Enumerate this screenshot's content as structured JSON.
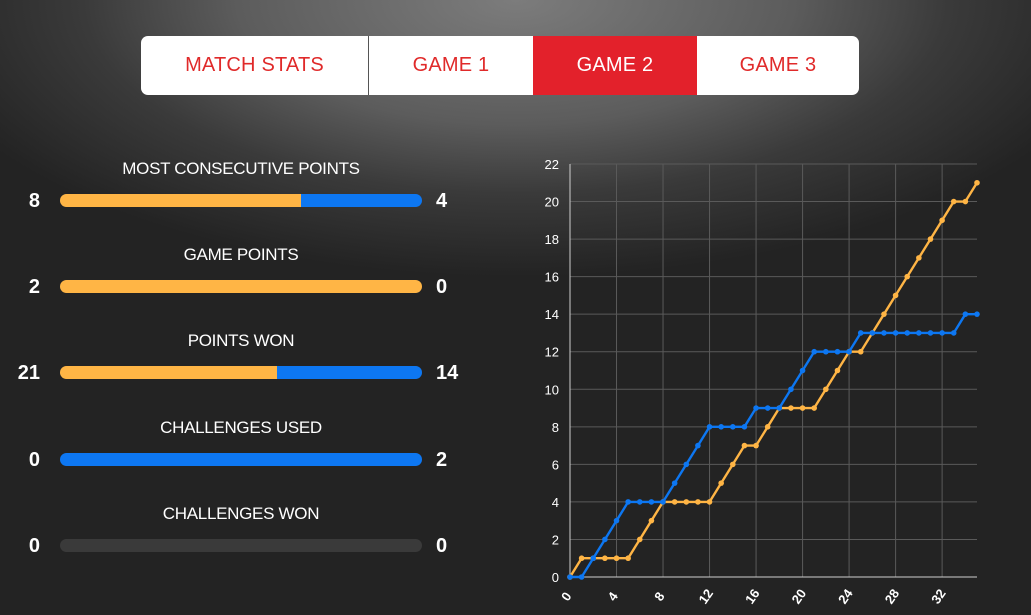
{
  "tabs": [
    {
      "label": "MATCH STATS",
      "active": false
    },
    {
      "label": "GAME 1",
      "active": false
    },
    {
      "label": "GAME 2",
      "active": true
    },
    {
      "label": "GAME 3",
      "active": false
    }
  ],
  "colors": {
    "player_a": "#ffb545",
    "player_b": "#0d77f2",
    "empty_bar": "#3a3a3a",
    "active_tab": "#e3212b",
    "tab_text": "#e02a2a"
  },
  "stats": [
    {
      "label": "MOST CONSECUTIVE POINTS",
      "left": "8",
      "right": "4",
      "left_value": 8,
      "right_value": 4
    },
    {
      "label": "GAME POINTS",
      "left": "2",
      "right": "0",
      "left_value": 2,
      "right_value": 0
    },
    {
      "label": "POINTS WON",
      "left": "21",
      "right": "14",
      "left_value": 21,
      "right_value": 14
    },
    {
      "label": "CHALLENGES USED",
      "left": "0",
      "right": "2",
      "left_value": 0,
      "right_value": 2
    },
    {
      "label": "CHALLENGES WON",
      "left": "0",
      "right": "0",
      "left_value": 0,
      "right_value": 0
    }
  ],
  "chart_data": {
    "type": "line",
    "xlim": [
      0,
      35
    ],
    "ylim": [
      0,
      22
    ],
    "x_ticks": [
      0,
      4,
      8,
      12,
      16,
      20,
      24,
      28,
      32
    ],
    "y_ticks": [
      0,
      2,
      4,
      6,
      8,
      10,
      12,
      14,
      16,
      18,
      20,
      22
    ],
    "grid": true,
    "series": [
      {
        "color": "#ffb545",
        "x": [
          0,
          1,
          2,
          3,
          4,
          5,
          6,
          7,
          8,
          9,
          10,
          11,
          12,
          13,
          14,
          15,
          16,
          17,
          18,
          19,
          20,
          21,
          22,
          23,
          24,
          25,
          26,
          27,
          28,
          29,
          30,
          31,
          32,
          33,
          34,
          35
        ],
        "y": [
          0,
          1,
          1,
          1,
          1,
          1,
          2,
          3,
          4,
          4,
          4,
          4,
          4,
          5,
          6,
          7,
          7,
          8,
          9,
          9,
          9,
          9,
          10,
          11,
          12,
          12,
          13,
          14,
          15,
          16,
          17,
          18,
          19,
          20,
          20,
          21
        ]
      },
      {
        "color": "#0d77f2",
        "x": [
          0,
          1,
          2,
          3,
          4,
          5,
          6,
          7,
          8,
          9,
          10,
          11,
          12,
          13,
          14,
          15,
          16,
          17,
          18,
          19,
          20,
          21,
          22,
          23,
          24,
          25,
          26,
          27,
          28,
          29,
          30,
          31,
          32,
          33,
          34,
          35
        ],
        "y": [
          0,
          0,
          1,
          2,
          3,
          4,
          4,
          4,
          4,
          5,
          6,
          7,
          8,
          8,
          8,
          8,
          9,
          9,
          9,
          10,
          11,
          12,
          12,
          12,
          12,
          13,
          13,
          13,
          13,
          13,
          13,
          13,
          13,
          13,
          14,
          14
        ]
      }
    ]
  }
}
